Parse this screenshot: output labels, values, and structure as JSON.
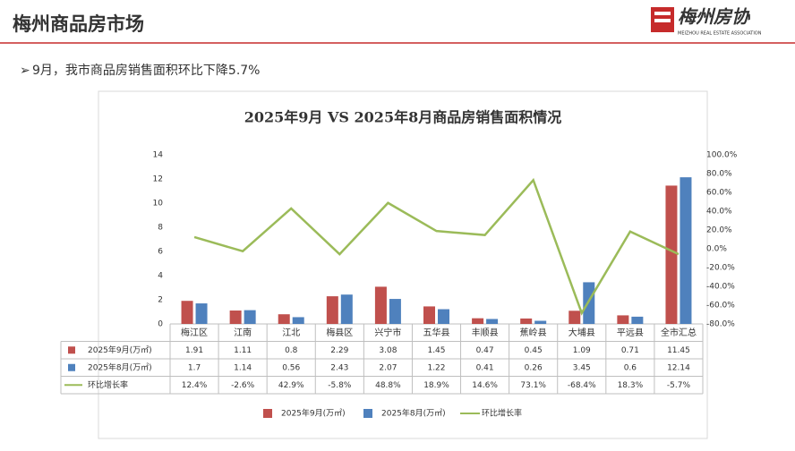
{
  "header": {
    "title": "梅州商品房市场",
    "logo_name": "梅州房协",
    "logo_subtitle": "MEIZHOU REAL ESTATE ASSOCIATION"
  },
  "bullet": "9月，我市商品房销售面积环比下降5.7%",
  "chart_data": {
    "type": "bar",
    "title": "2025年9月 VS 2025年8月商品房销售面积情况",
    "categories": [
      "梅江区",
      "江南",
      "江北",
      "梅县区",
      "兴宁市",
      "五华县",
      "丰顺县",
      "蕉岭县",
      "大埔县",
      "平远县",
      "全市汇总"
    ],
    "series": [
      {
        "name": "2025年9月(万㎡)",
        "color": "#c0504d",
        "values": [
          1.91,
          1.11,
          0.8,
          2.29,
          3.08,
          1.45,
          0.47,
          0.45,
          1.09,
          0.71,
          11.45
        ]
      },
      {
        "name": "2025年8月(万㎡)",
        "color": "#4f81bd",
        "values": [
          1.7,
          1.14,
          0.56,
          2.43,
          2.07,
          1.22,
          0.41,
          0.26,
          3.45,
          0.6,
          12.14
        ]
      },
      {
        "name": "环比增长率",
        "color": "#9bbb59",
        "type": "line",
        "axis": "y2",
        "values": [
          12.4,
          -2.6,
          42.9,
          -5.8,
          48.8,
          18.9,
          14.6,
          73.1,
          -68.4,
          18.3,
          -5.7
        ],
        "value_labels": [
          "12.4%",
          "-2.6%",
          "42.9%",
          "-5.8%",
          "48.8%",
          "18.9%",
          "14.6%",
          "73.1%",
          "-68.4%",
          "18.3%",
          "-5.7%"
        ]
      }
    ],
    "ylim": [
      0,
      14
    ],
    "yticks": [
      0,
      2,
      4,
      6,
      8,
      10,
      12,
      14
    ],
    "y2lim": [
      -80,
      100
    ],
    "y2ticks": [
      {
        "value": 100,
        "label": "100.0%"
      },
      {
        "value": 80,
        "label": "80.0%"
      },
      {
        "value": 60,
        "label": "60.0%"
      },
      {
        "value": 40,
        "label": "40.0%"
      },
      {
        "value": 20,
        "label": "20.0%"
      },
      {
        "value": 0,
        "label": "0.0%"
      },
      {
        "value": -20,
        "label": "-20.0%"
      },
      {
        "value": -40,
        "label": "-40.0%"
      },
      {
        "value": -60,
        "label": "-60.0%"
      },
      {
        "value": -80,
        "label": "-80.0%"
      }
    ],
    "grid": false
  }
}
